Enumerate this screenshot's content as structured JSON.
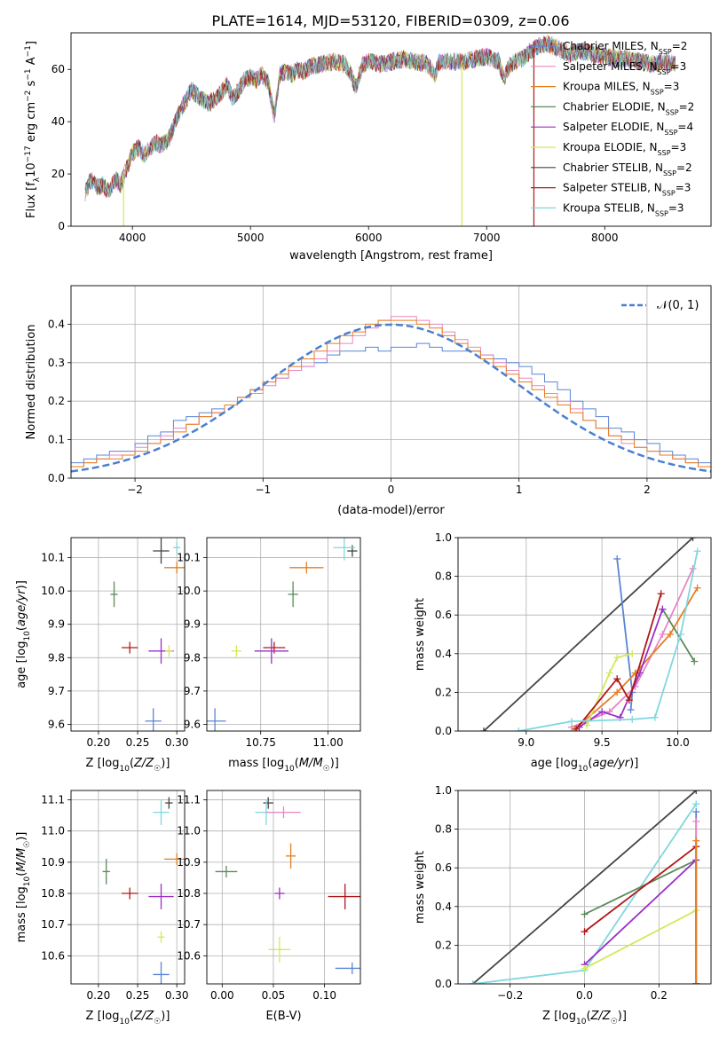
{
  "figure": {
    "title": "PLATE=1614, MJD=53120, FIBERID=0309, z=0.06"
  },
  "colors": {
    "Chabrier MILES": "#5b84d6",
    "Salpeter MILES": "#e886c4",
    "Kroupa MILES": "#e67e22",
    "Chabrier ELODIE": "#5a8a5a",
    "Salpeter ELODIE": "#9b30c8",
    "Kroupa ELODIE": "#d4e85a",
    "Chabrier STELIB": "#444444",
    "Salpeter STELIB": "#b01818",
    "Kroupa STELIB": "#7fd8de",
    "normal_curve": "#4a7fd0"
  },
  "chart_data": [
    {
      "id": "spectrum",
      "type": "line",
      "xlabel": "wavelength [Angstrom, rest frame]",
      "ylabel_parts": [
        "Flux [f",
        "λ",
        "10",
        "−17",
        " erg cm",
        "−2",
        " s",
        "−1",
        " A",
        "−1",
        "]"
      ],
      "xlim": [
        3480,
        8900
      ],
      "ylim": [
        0,
        74
      ],
      "xticks": [
        4000,
        5000,
        6000,
        7000,
        8000
      ],
      "yticks": [
        0,
        20,
        40,
        60
      ],
      "grid": false,
      "legend_position": "right",
      "legend": [
        {
          "main": "Chabrier MILES, N",
          "sub": "SSP",
          "tail": "=2",
          "color": "#5b84d6"
        },
        {
          "main": "Salpeter MILES, N",
          "sub": "SSP",
          "tail": "=3",
          "color": "#e886c4"
        },
        {
          "main": "Kroupa MILES, N",
          "sub": "SSP",
          "tail": "=3",
          "color": "#e67e22"
        },
        {
          "main": "Chabrier ELODIE, N",
          "sub": "SSP",
          "tail": "=2",
          "color": "#5a8a5a"
        },
        {
          "main": "Salpeter ELODIE, N",
          "sub": "SSP",
          "tail": "=4",
          "color": "#9b30c8"
        },
        {
          "main": "Kroupa ELODIE, N",
          "sub": "SSP",
          "tail": "=3",
          "color": "#d4e85a"
        },
        {
          "main": "Chabrier STELIB, N",
          "sub": "SSP",
          "tail": "=2",
          "color": "#444444"
        },
        {
          "main": "Salpeter STELIB, N",
          "sub": "SSP",
          "tail": "=3",
          "color": "#b01818"
        },
        {
          "main": "Kroupa STELIB, N",
          "sub": "SSP",
          "tail": "=3",
          "color": "#7fd8de"
        }
      ],
      "envelope": [
        [
          3600,
          13
        ],
        [
          3650,
          18
        ],
        [
          3700,
          15
        ],
        [
          3750,
          16
        ],
        [
          3800,
          13
        ],
        [
          3850,
          18
        ],
        [
          3900,
          16
        ],
        [
          3950,
          22
        ],
        [
          4000,
          28
        ],
        [
          4050,
          30
        ],
        [
          4100,
          27
        ],
        [
          4150,
          30
        ],
        [
          4200,
          32
        ],
        [
          4250,
          31
        ],
        [
          4300,
          33
        ],
        [
          4350,
          38
        ],
        [
          4400,
          44
        ],
        [
          4450,
          48
        ],
        [
          4500,
          52
        ],
        [
          4550,
          50
        ],
        [
          4600,
          48
        ],
        [
          4650,
          47
        ],
        [
          4700,
          49
        ],
        [
          4750,
          51
        ],
        [
          4800,
          54
        ],
        [
          4850,
          49
        ],
        [
          4900,
          52
        ],
        [
          4950,
          56
        ],
        [
          5000,
          57
        ],
        [
          5050,
          56
        ],
        [
          5100,
          58
        ],
        [
          5150,
          55
        ],
        [
          5200,
          42
        ],
        [
          5250,
          58
        ],
        [
          5300,
          59
        ],
        [
          5350,
          58
        ],
        [
          5400,
          60
        ],
        [
          5450,
          59
        ],
        [
          5500,
          61
        ],
        [
          5600,
          62
        ],
        [
          5700,
          63
        ],
        [
          5800,
          62
        ],
        [
          5850,
          58
        ],
        [
          5890,
          53
        ],
        [
          5950,
          62
        ],
        [
          6000,
          63
        ],
        [
          6100,
          62
        ],
        [
          6200,
          63
        ],
        [
          6300,
          64
        ],
        [
          6400,
          63
        ],
        [
          6500,
          62
        ],
        [
          6563,
          58
        ],
        [
          6600,
          63
        ],
        [
          6700,
          63
        ],
        [
          6800,
          63
        ],
        [
          6900,
          64
        ],
        [
          7000,
          65
        ],
        [
          7100,
          63
        ],
        [
          7150,
          57
        ],
        [
          7200,
          62
        ],
        [
          7300,
          64
        ],
        [
          7400,
          68
        ],
        [
          7500,
          70
        ],
        [
          7600,
          68
        ],
        [
          7700,
          66
        ],
        [
          7800,
          67
        ],
        [
          7900,
          66
        ],
        [
          8000,
          65
        ],
        [
          8100,
          64
        ],
        [
          8200,
          64
        ],
        [
          8300,
          63
        ],
        [
          8400,
          62
        ],
        [
          8500,
          63
        ],
        [
          8600,
          62
        ]
      ],
      "drop_lines": [
        [
          3925,
          "#d4e85a"
        ],
        [
          6790,
          "#d4e85a"
        ],
        [
          7400,
          "#b01818"
        ]
      ]
    },
    {
      "id": "residual_hist",
      "type": "bar",
      "xlabel": "(data-model)/error",
      "ylabel": "Normed distribution",
      "xlim": [
        -2.5,
        2.5
      ],
      "ylim": [
        0,
        0.5
      ],
      "xticks": [
        -2,
        -1,
        0,
        1,
        2
      ],
      "yticks": [
        0.0,
        0.1,
        0.2,
        0.3,
        0.4
      ],
      "grid": true,
      "legend_position": "upper right",
      "normal_label": "𝒩(0, 1)",
      "bin_width": 0.1,
      "bin_start": -2.5,
      "series": [
        {
          "color": "#5b84d6",
          "values": [
            0.04,
            0.05,
            0.06,
            0.07,
            0.07,
            0.09,
            0.11,
            0.12,
            0.15,
            0.16,
            0.17,
            0.18,
            0.19,
            0.21,
            0.23,
            0.25,
            0.26,
            0.28,
            0.29,
            0.3,
            0.32,
            0.33,
            0.33,
            0.34,
            0.33,
            0.34,
            0.34,
            0.35,
            0.34,
            0.33,
            0.33,
            0.33,
            0.32,
            0.31,
            0.3,
            0.29,
            0.27,
            0.25,
            0.23,
            0.2,
            0.18,
            0.16,
            0.13,
            0.12,
            0.1,
            0.09,
            0.07,
            0.06,
            0.05,
            0.04
          ]
        },
        {
          "color": "#e886c4",
          "values": [
            0.03,
            0.04,
            0.05,
            0.06,
            0.06,
            0.08,
            0.09,
            0.11,
            0.13,
            0.14,
            0.16,
            0.17,
            0.19,
            0.21,
            0.22,
            0.24,
            0.26,
            0.28,
            0.29,
            0.31,
            0.33,
            0.35,
            0.37,
            0.39,
            0.41,
            0.42,
            0.42,
            0.41,
            0.4,
            0.38,
            0.36,
            0.34,
            0.32,
            0.3,
            0.28,
            0.26,
            0.24,
            0.22,
            0.2,
            0.18,
            0.15,
            0.13,
            0.11,
            0.09,
            0.08,
            0.07,
            0.06,
            0.05,
            0.04,
            0.03
          ]
        },
        {
          "color": "#e67e22",
          "values": [
            0.03,
            0.04,
            0.05,
            0.05,
            0.06,
            0.07,
            0.09,
            0.1,
            0.12,
            0.14,
            0.16,
            0.17,
            0.19,
            0.21,
            0.23,
            0.25,
            0.27,
            0.29,
            0.31,
            0.33,
            0.35,
            0.37,
            0.38,
            0.4,
            0.41,
            0.41,
            0.41,
            0.4,
            0.39,
            0.37,
            0.35,
            0.33,
            0.31,
            0.29,
            0.27,
            0.25,
            0.23,
            0.21,
            0.19,
            0.17,
            0.15,
            0.13,
            0.11,
            0.1,
            0.08,
            0.07,
            0.06,
            0.05,
            0.04,
            0.03
          ]
        }
      ],
      "normal": {
        "mu": 0,
        "sigma": 1
      }
    },
    {
      "id": "z_age",
      "type": "scatter",
      "xlabel": "Z [log10(Z/Z☉)]",
      "ylabel": "age  [log10(age/yr)]",
      "xlim": [
        0.165,
        0.31
      ],
      "ylim": [
        9.58,
        10.16
      ],
      "xticks": [
        0.2,
        0.25,
        0.3
      ],
      "yticks": [
        9.6,
        9.7,
        9.8,
        9.9,
        10.0,
        10.1
      ],
      "grid": true,
      "points": [
        {
          "x": 0.3,
          "y": 10.13,
          "color": "#7fd8de"
        },
        {
          "x": 0.28,
          "y": 10.12,
          "color": "#444444"
        },
        {
          "x": 0.3,
          "y": 10.07,
          "color": "#e67e22"
        },
        {
          "x": 0.22,
          "y": 9.99,
          "color": "#5a8a5a"
        },
        {
          "x": 0.24,
          "y": 9.83,
          "color": "#b01818"
        },
        {
          "x": 0.28,
          "y": 9.82,
          "color": "#9b30c8"
        },
        {
          "x": 0.29,
          "y": 9.82,
          "color": "#d4e85a"
        },
        {
          "x": 0.27,
          "y": 9.61,
          "color": "#5b84d6"
        }
      ]
    },
    {
      "id": "mass_age",
      "type": "scatter",
      "xlabel": "mass [log10(M/M☉)]",
      "ylabel": "",
      "xlim": [
        10.55,
        11.12
      ],
      "ylim": [
        9.58,
        10.16
      ],
      "xticks": [
        10.75,
        11.0
      ],
      "yticks": [
        9.6,
        9.7,
        9.8,
        9.9,
        10.0,
        10.1
      ],
      "grid": true,
      "points": [
        {
          "x": 11.09,
          "y": 10.12,
          "color": "#444444"
        },
        {
          "x": 11.06,
          "y": 10.13,
          "color": "#7fd8de"
        },
        {
          "x": 10.92,
          "y": 10.07,
          "color": "#e67e22"
        },
        {
          "x": 10.87,
          "y": 9.99,
          "color": "#5a8a5a"
        },
        {
          "x": 10.8,
          "y": 9.83,
          "color": "#b01818"
        },
        {
          "x": 10.79,
          "y": 9.82,
          "color": "#9b30c8"
        },
        {
          "x": 10.66,
          "y": 9.82,
          "color": "#d4e85a"
        },
        {
          "x": 10.58,
          "y": 9.61,
          "color": "#5b84d6"
        }
      ]
    },
    {
      "id": "age_weight",
      "type": "line",
      "xlabel": "age  [log10(age/yr)]",
      "ylabel": "mass weight",
      "xlim": [
        8.55,
        10.22
      ],
      "ylim": [
        0,
        1
      ],
      "xticks": [
        9.0,
        9.5,
        10.0
      ],
      "yticks": [
        0.0,
        0.2,
        0.4,
        0.6,
        0.8,
        1.0
      ],
      "grid": true,
      "series": [
        {
          "color": "#444444",
          "x": [
            8.72,
            10.1
          ],
          "y": [
            0.0,
            1.0
          ]
        },
        {
          "color": "#5b84d6",
          "x": [
            9.6,
            9.7,
            9.69
          ],
          "y": [
            0.89,
            0.2,
            0.11
          ]
        },
        {
          "color": "#e886c4",
          "x": [
            9.3,
            9.55,
            9.72,
            9.9,
            10.1
          ],
          "y": [
            0.02,
            0.1,
            0.23,
            0.5,
            0.84
          ]
        },
        {
          "color": "#e67e22",
          "x": [
            9.32,
            9.6,
            9.72,
            9.95,
            10.13
          ],
          "y": [
            0.01,
            0.2,
            0.3,
            0.5,
            0.74
          ]
        },
        {
          "color": "#5a8a5a",
          "x": [
            9.9,
            10.11
          ],
          "y": [
            0.63,
            0.36
          ]
        },
        {
          "color": "#9b30c8",
          "x": [
            9.35,
            9.5,
            9.62,
            9.75,
            9.9
          ],
          "y": [
            0.02,
            0.1,
            0.07,
            0.3,
            0.63
          ]
        },
        {
          "color": "#d4e85a",
          "x": [
            9.4,
            9.55,
            9.6,
            9.7
          ],
          "y": [
            0.03,
            0.3,
            0.38,
            0.4
          ]
        },
        {
          "color": "#b01818",
          "x": [
            9.33,
            9.6,
            9.68,
            9.89
          ],
          "y": [
            0.01,
            0.27,
            0.16,
            0.71
          ]
        },
        {
          "color": "#7fd8de",
          "x": [
            8.95,
            9.3,
            9.7,
            9.85,
            10.02,
            10.13
          ],
          "y": [
            0.0,
            0.05,
            0.06,
            0.07,
            0.5,
            0.93
          ]
        }
      ]
    },
    {
      "id": "z_mass",
      "type": "scatter",
      "xlabel": "Z [log10(Z/Z☉)]",
      "ylabel": "mass [log10(M/M☉)]",
      "xlim": [
        0.165,
        0.31
      ],
      "ylim": [
        10.51,
        11.13
      ],
      "xticks": [
        0.2,
        0.25,
        0.3
      ],
      "yticks": [
        10.6,
        10.7,
        10.8,
        10.9,
        11.0,
        11.1
      ],
      "grid": true,
      "points": [
        {
          "x": 0.29,
          "y": 11.09,
          "color": "#444444"
        },
        {
          "x": 0.28,
          "y": 11.06,
          "color": "#7fd8de"
        },
        {
          "x": 0.3,
          "y": 10.91,
          "color": "#e67e22"
        },
        {
          "x": 0.21,
          "y": 10.87,
          "color": "#5a8a5a"
        },
        {
          "x": 0.24,
          "y": 10.8,
          "color": "#b01818"
        },
        {
          "x": 0.28,
          "y": 10.79,
          "color": "#9b30c8"
        },
        {
          "x": 0.28,
          "y": 10.66,
          "color": "#d4e85a"
        },
        {
          "x": 0.28,
          "y": 10.54,
          "color": "#5b84d6"
        }
      ]
    },
    {
      "id": "ebv_mass",
      "type": "scatter",
      "xlabel": "E(B-V)",
      "ylabel": "",
      "xlim": [
        -0.015,
        0.135
      ],
      "ylim": [
        10.51,
        11.13
      ],
      "xticks": [
        0.0,
        0.05,
        0.1
      ],
      "yticks": [
        10.6,
        10.7,
        10.8,
        10.9,
        11.0,
        11.1
      ],
      "grid": true,
      "points": [
        {
          "x": 0.045,
          "y": 11.09,
          "color": "#444444"
        },
        {
          "x": 0.043,
          "y": 11.06,
          "color": "#7fd8de"
        },
        {
          "x": 0.06,
          "y": 11.06,
          "color": "#e886c4"
        },
        {
          "x": 0.067,
          "y": 10.92,
          "color": "#e67e22"
        },
        {
          "x": 0.004,
          "y": 10.87,
          "color": "#5a8a5a"
        },
        {
          "x": 0.12,
          "y": 10.79,
          "color": "#b01818"
        },
        {
          "x": 0.056,
          "y": 10.8,
          "color": "#9b30c8"
        },
        {
          "x": 0.056,
          "y": 10.62,
          "color": "#d4e85a"
        },
        {
          "x": 0.127,
          "y": 10.56,
          "color": "#5b84d6"
        }
      ]
    },
    {
      "id": "z_weight",
      "type": "line",
      "xlabel": "Z [log10(Z/Z☉)]",
      "ylabel": "mass weight",
      "xlim": [
        -0.34,
        0.34
      ],
      "ylim": [
        0,
        1
      ],
      "xticks": [
        -0.2,
        0.0,
        0.2
      ],
      "yticks": [
        0.0,
        0.2,
        0.4,
        0.6,
        0.8,
        1.0
      ],
      "grid": true,
      "series": [
        {
          "color": "#444444",
          "x": [
            -0.3,
            0.3
          ],
          "y": [
            0.0,
            1.0
          ]
        },
        {
          "color": "#7fd8de",
          "x": [
            -0.3,
            0.0,
            0.3
          ],
          "y": [
            0.0,
            0.07,
            0.93
          ]
        },
        {
          "color": "#5a8a5a",
          "x": [
            0.0,
            0.3
          ],
          "y": [
            0.36,
            0.64
          ]
        },
        {
          "color": "#b01818",
          "x": [
            0.0,
            0.3,
            0.3
          ],
          "y": [
            0.27,
            0.71,
            0.0
          ]
        },
        {
          "color": "#9b30c8",
          "x": [
            0.0,
            0.3,
            0.3
          ],
          "y": [
            0.1,
            0.64,
            0.0
          ]
        },
        {
          "color": "#d4e85a",
          "x": [
            0.0,
            0.3
          ],
          "y": [
            0.08,
            0.38
          ]
        },
        {
          "color": "#5b84d6",
          "x": [
            0.3,
            0.3
          ],
          "y": [
            0.0,
            0.89
          ]
        },
        {
          "color": "#e886c4",
          "x": [
            0.3,
            0.3
          ],
          "y": [
            0.0,
            0.84
          ]
        },
        {
          "color": "#e67e22",
          "x": [
            0.3,
            0.3
          ],
          "y": [
            0.0,
            0.74
          ]
        }
      ]
    }
  ]
}
